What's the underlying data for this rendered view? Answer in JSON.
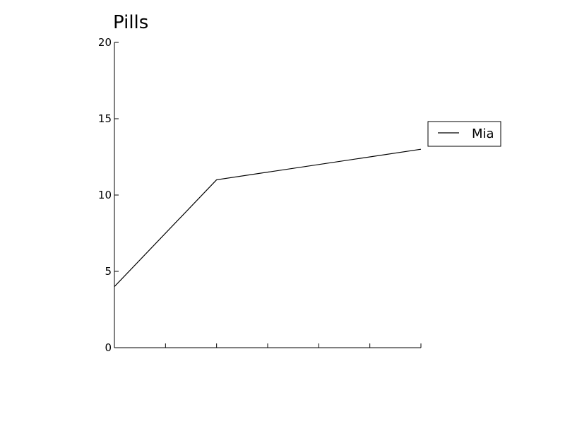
{
  "chart_data": {
    "type": "line",
    "title": "Pills",
    "xlabel": "",
    "ylabel": "",
    "x": [
      0,
      1,
      2,
      3,
      4,
      5,
      6
    ],
    "xlim": [
      0,
      6
    ],
    "ylim": [
      0,
      20
    ],
    "yticks": [
      0,
      5,
      10,
      15,
      20
    ],
    "ytick_labels": [
      "0",
      "5",
      "10",
      "15",
      "20"
    ],
    "xtick_labels": [],
    "grid": false,
    "legend_placement": "outside-right",
    "series": [
      {
        "name": "Mia",
        "color": "#000000",
        "values": [
          4,
          null,
          11,
          null,
          null,
          null,
          13
        ]
      }
    ]
  }
}
